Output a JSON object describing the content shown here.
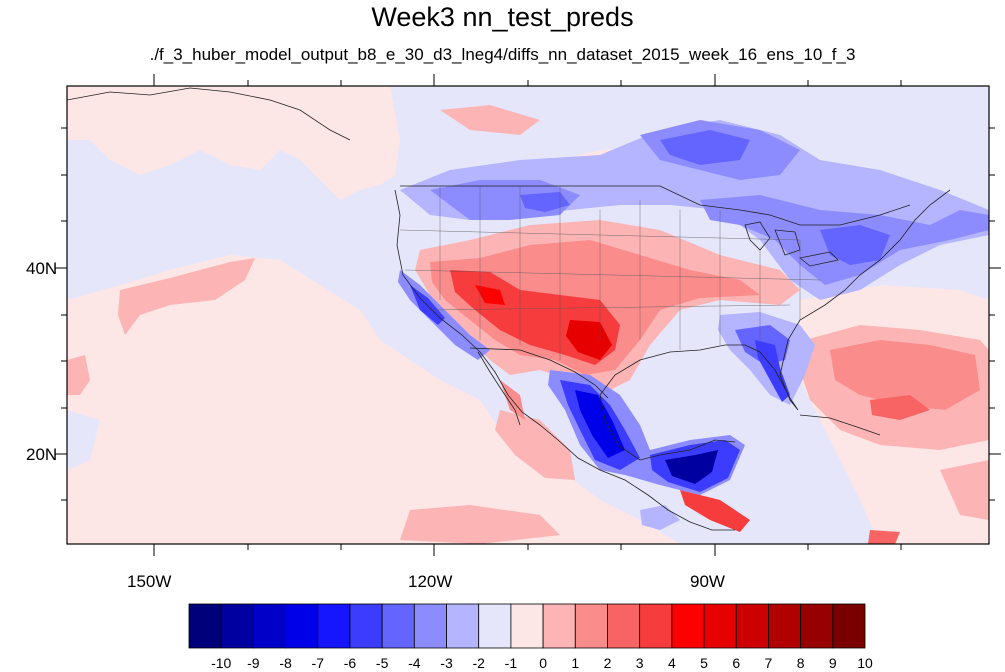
{
  "map": {
    "title": "Week3 nn_test_preds",
    "subtitle": "./f_3_huber_model_output_b8_e_30_d3_lneg4/diffs_nn_dataset_2015_week_16_ens_10_f_3",
    "lon_labels": [
      "150W",
      "120W",
      "90W"
    ],
    "lat_labels": [
      "40N",
      "20N"
    ],
    "projection": "cylindrical equidistant",
    "lon_range": [
      -160,
      -62
    ],
    "lat_range": [
      10,
      59
    ],
    "background_color": "#e6e6fb"
  },
  "colorbar": {
    "labels": [
      "-10",
      "-9",
      "-8",
      "-7",
      "-6",
      "-5",
      "-4",
      "-3",
      "-2",
      "-1",
      "0",
      "1",
      "2",
      "3",
      "4",
      "5",
      "6",
      "7",
      "8",
      "9",
      "10"
    ],
    "colors": [
      "#00007a",
      "#0000a0",
      "#0000c8",
      "#0000e8",
      "#1515ff",
      "#3c3cff",
      "#6464ff",
      "#8c8cff",
      "#b4b4ff",
      "#e6e6fb",
      "#fde6e6",
      "#fcb4b4",
      "#fa8c8c",
      "#f86464",
      "#f63c3c",
      "#ff0000",
      "#e60000",
      "#cc0000",
      "#b00000",
      "#960000",
      "#7a0000"
    ]
  }
}
